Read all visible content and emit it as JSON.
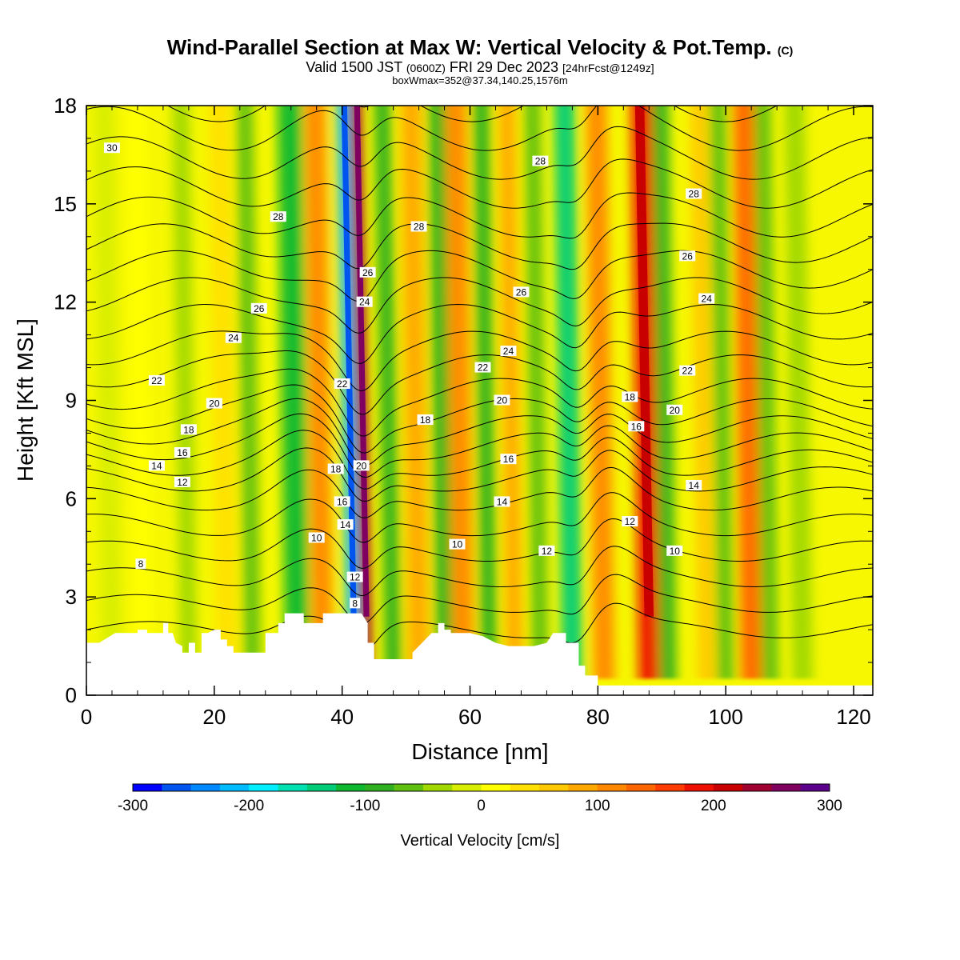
{
  "header": {
    "title": "Wind-Parallel Section at Max W: Vertical Velocity & Pot.Temp.",
    "title_mark": "(C)",
    "valid_prefix": "Valid 1500 JST",
    "valid_zulu": "(0600Z)",
    "valid_date": "FRI 29 Dec 2023",
    "forecast": "[24hrFcst@1249z]",
    "box_info": "boxWmax=352@37.34,140.25,1576m"
  },
  "chart_data": {
    "type": "heatmap",
    "xlabel": "Distance [nm]",
    "ylabel": "Height [Kft MSL]",
    "xlim": [
      0,
      123
    ],
    "ylim": [
      0,
      18
    ],
    "x_ticks": [
      "0",
      "20",
      "40",
      "60",
      "80",
      "100",
      "120"
    ],
    "y_ticks": [
      "0",
      "3",
      "6",
      "9",
      "12",
      "15",
      "18"
    ],
    "colorbar": {
      "title": "Vertical Velocity [cm/s]",
      "range": [
        -300,
        300
      ],
      "tick_labels": [
        "-300",
        "-200",
        "-100",
        "0",
        "100",
        "200",
        "300"
      ],
      "colors": [
        "#0000ff",
        "#0055ee",
        "#0088ff",
        "#00bbff",
        "#00eeff",
        "#00e0b0",
        "#00cc77",
        "#10b830",
        "#30b020",
        "#60c010",
        "#a0d800",
        "#d8ee00",
        "#ffff00",
        "#ffe000",
        "#ffc800",
        "#ffa800",
        "#ff8800",
        "#ff6600",
        "#ff3c00",
        "#ee1000",
        "#c80000",
        "#a00030",
        "#800060",
        "#5a008a"
      ]
    },
    "vertical_velocity_bands": [
      {
        "x": 4,
        "w": 3.2,
        "value": -20
      },
      {
        "x": 9,
        "w": 3.2,
        "value": 20
      },
      {
        "x": 16,
        "w": 2.6,
        "value": -50
      },
      {
        "x": 22,
        "w": 3.2,
        "value": 30
      },
      {
        "x": 26,
        "w": 2.6,
        "value": -70
      },
      {
        "x": 33,
        "w": 3.8,
        "value": -110
      },
      {
        "x": 37,
        "w": 3.2,
        "value": 120
      },
      {
        "x": 41.8,
        "w": 2,
        "value": -220
      },
      {
        "x": 43.8,
        "w": 2,
        "value": 230
      },
      {
        "x": 48,
        "w": 2.6,
        "value": -100
      },
      {
        "x": 52,
        "w": 3.2,
        "value": 90
      },
      {
        "x": 56,
        "w": 2.6,
        "value": -80
      },
      {
        "x": 59,
        "w": 3.2,
        "value": 110
      },
      {
        "x": 63,
        "w": 2.6,
        "value": -90
      },
      {
        "x": 67,
        "w": 2.6,
        "value": 80
      },
      {
        "x": 71,
        "w": 2.6,
        "value": -60
      },
      {
        "x": 76,
        "w": 3.2,
        "value": -140
      },
      {
        "x": 81,
        "w": 3.2,
        "value": 110
      },
      {
        "x": 88,
        "w": 3.2,
        "value": 180
      },
      {
        "x": 91,
        "w": 2.6,
        "value": -90
      },
      {
        "x": 97,
        "w": 2.6,
        "value": 60
      },
      {
        "x": 100,
        "w": 2.6,
        "value": -70
      },
      {
        "x": 104,
        "w": 3.2,
        "value": 130
      },
      {
        "x": 107,
        "w": 2.6,
        "value": -60
      },
      {
        "x": 112,
        "w": 3.2,
        "value": -30
      }
    ],
    "theta_contours": {
      "base_levels": [
        2,
        2.8,
        3.6,
        4.4,
        5.2,
        6.0,
        6.6,
        7.1,
        7.6,
        8.1,
        8.6,
        9.2,
        9.9,
        10.6,
        11.4,
        12.2,
        13.0,
        13.8,
        14.6,
        15.5,
        16.4,
        17.3,
        18.2
      ],
      "labels": [
        {
          "text": "30",
          "x": 4,
          "y": 16.7
        },
        {
          "text": "28",
          "x": 30,
          "y": 14.6
        },
        {
          "text": "28",
          "x": 52,
          "y": 14.3
        },
        {
          "text": "28",
          "x": 71,
          "y": 16.3
        },
        {
          "text": "28",
          "x": 95,
          "y": 15.3
        },
        {
          "text": "26",
          "x": 27,
          "y": 11.8
        },
        {
          "text": "26",
          "x": 44,
          "y": 12.9
        },
        {
          "text": "26",
          "x": 68,
          "y": 12.3
        },
        {
          "text": "26",
          "x": 94,
          "y": 13.4
        },
        {
          "text": "24",
          "x": 23,
          "y": 10.9
        },
        {
          "text": "24",
          "x": 43.5,
          "y": 12.0
        },
        {
          "text": "24",
          "x": 66,
          "y": 10.5
        },
        {
          "text": "24",
          "x": 97,
          "y": 12.1
        },
        {
          "text": "22",
          "x": 11,
          "y": 9.6
        },
        {
          "text": "22",
          "x": 40,
          "y": 9.5
        },
        {
          "text": "22",
          "x": 62,
          "y": 10.0
        },
        {
          "text": "22",
          "x": 94,
          "y": 9.9
        },
        {
          "text": "20",
          "x": 20,
          "y": 8.9
        },
        {
          "text": "20",
          "x": 65,
          "y": 9.0
        },
        {
          "text": "20",
          "x": 92,
          "y": 8.7
        },
        {
          "text": "20",
          "x": 43,
          "y": 7.0
        },
        {
          "text": "18",
          "x": 16,
          "y": 8.1
        },
        {
          "text": "18",
          "x": 53,
          "y": 8.4
        },
        {
          "text": "18",
          "x": 85,
          "y": 9.1
        },
        {
          "text": "18",
          "x": 39,
          "y": 6.9
        },
        {
          "text": "16",
          "x": 15,
          "y": 7.4
        },
        {
          "text": "16",
          "x": 66,
          "y": 7.2
        },
        {
          "text": "16",
          "x": 86,
          "y": 8.2
        },
        {
          "text": "16",
          "x": 40,
          "y": 5.9
        },
        {
          "text": "14",
          "x": 11,
          "y": 7.0
        },
        {
          "text": "14",
          "x": 65,
          "y": 5.9
        },
        {
          "text": "14",
          "x": 95,
          "y": 6.4
        },
        {
          "text": "14",
          "x": 40.5,
          "y": 5.2
        },
        {
          "text": "12",
          "x": 15,
          "y": 6.5
        },
        {
          "text": "12",
          "x": 72,
          "y": 4.4
        },
        {
          "text": "12",
          "x": 85,
          "y": 5.3
        },
        {
          "text": "12",
          "x": 42,
          "y": 3.6
        },
        {
          "text": "10",
          "x": 36,
          "y": 4.8
        },
        {
          "text": "10",
          "x": 58,
          "y": 4.6
        },
        {
          "text": "10",
          "x": 92,
          "y": 4.4
        },
        {
          "text": "8",
          "x": 8.5,
          "y": 4.0
        },
        {
          "text": "8",
          "x": 42,
          "y": 2.8
        }
      ]
    },
    "terrain": [
      [
        0,
        1.6
      ],
      [
        2,
        1.6
      ],
      [
        4.5,
        1.9
      ],
      [
        8,
        1.9
      ],
      [
        8,
        2.0
      ],
      [
        9.5,
        2.0
      ],
      [
        9.5,
        1.9
      ],
      [
        12,
        1.9
      ],
      [
        12,
        2.2
      ],
      [
        12.8,
        2.2
      ],
      [
        12.8,
        1.9
      ],
      [
        13.5,
        1.9
      ],
      [
        14,
        1.6
      ],
      [
        15,
        1.5
      ],
      [
        15,
        1.3
      ],
      [
        16,
        1.3
      ],
      [
        16,
        1.6
      ],
      [
        17,
        1.6
      ],
      [
        17,
        1.3
      ],
      [
        18,
        1.3
      ],
      [
        18,
        1.9
      ],
      [
        19,
        1.9
      ],
      [
        20,
        2.0
      ],
      [
        21,
        2.0
      ],
      [
        21,
        1.7
      ],
      [
        22,
        1.7
      ],
      [
        22,
        1.5
      ],
      [
        23,
        1.5
      ],
      [
        23,
        1.3
      ],
      [
        28,
        1.3
      ],
      [
        28,
        1.9
      ],
      [
        30,
        1.9
      ],
      [
        30,
        2.2
      ],
      [
        31,
        2.2
      ],
      [
        31,
        2.5
      ],
      [
        34,
        2.5
      ],
      [
        34,
        2.2
      ],
      [
        37,
        2.2
      ],
      [
        37,
        2.5
      ],
      [
        41,
        2.5
      ],
      [
        42,
        2.5
      ],
      [
        43,
        2.5
      ],
      [
        44,
        2.2
      ],
      [
        44,
        1.6
      ],
      [
        45,
        1.6
      ],
      [
        45,
        1.1
      ],
      [
        51,
        1.1
      ],
      [
        51,
        1.3
      ],
      [
        52,
        1.5
      ],
      [
        53,
        1.7
      ],
      [
        54,
        1.9
      ],
      [
        55,
        1.9
      ],
      [
        55,
        2.2
      ],
      [
        56,
        2.2
      ],
      [
        56,
        2.0
      ],
      [
        57,
        2.0
      ],
      [
        57,
        1.9
      ],
      [
        60,
        1.9
      ],
      [
        62,
        1.8
      ],
      [
        64,
        1.6
      ],
      [
        66,
        1.5
      ],
      [
        70,
        1.5
      ],
      [
        72,
        1.6
      ],
      [
        73,
        1.9
      ],
      [
        75,
        1.9
      ],
      [
        75,
        1.6
      ],
      [
        77,
        1.6
      ],
      [
        77,
        0.9
      ],
      [
        78,
        0.9
      ],
      [
        78,
        0.6
      ],
      [
        80,
        0.6
      ],
      [
        80,
        0.3
      ],
      [
        123,
        0.3
      ]
    ]
  }
}
